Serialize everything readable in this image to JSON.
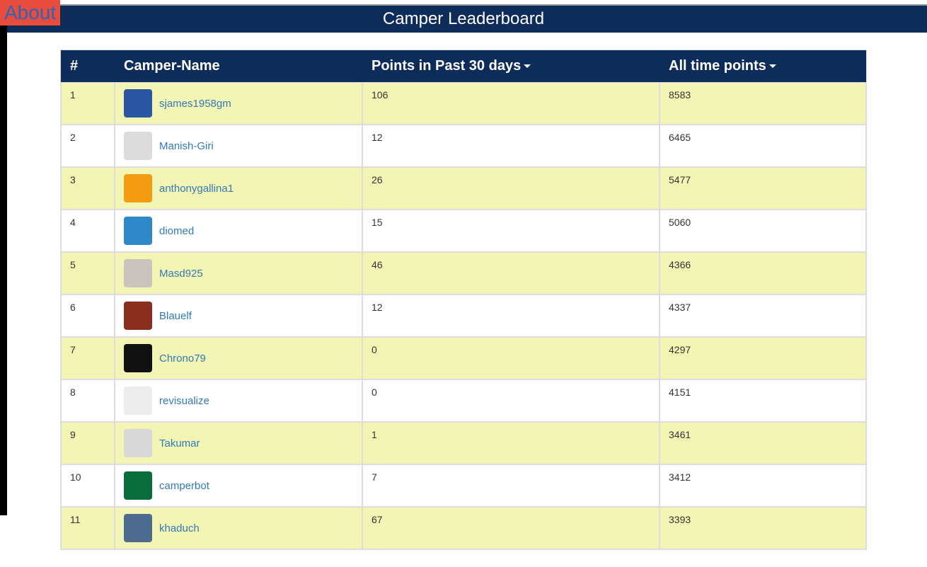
{
  "about": {
    "label": "About"
  },
  "header": {
    "title": "Camper Leaderboard"
  },
  "table": {
    "columns": {
      "rank": "#",
      "name": "Camper-Name",
      "recent": "Points in Past 30 days",
      "alltime": "All time points"
    },
    "rows": [
      {
        "rank": "1",
        "username": "sjames1958gm",
        "recent": "106",
        "alltime": "8583",
        "avatar_bg": "#2b56a3"
      },
      {
        "rank": "2",
        "username": "Manish-Giri",
        "recent": "12",
        "alltime": "6465",
        "avatar_bg": "#dcdcdc"
      },
      {
        "rank": "3",
        "username": "anthonygallina1",
        "recent": "26",
        "alltime": "5477",
        "avatar_bg": "#f39c12"
      },
      {
        "rank": "4",
        "username": "diomed",
        "recent": "15",
        "alltime": "5060",
        "avatar_bg": "#2f88c8"
      },
      {
        "rank": "5",
        "username": "Masd925",
        "recent": "46",
        "alltime": "4366",
        "avatar_bg": "#c9c4bd"
      },
      {
        "rank": "6",
        "username": "Blauelf",
        "recent": "12",
        "alltime": "4337",
        "avatar_bg": "#8b2d1f"
      },
      {
        "rank": "7",
        "username": "Chrono79",
        "recent": "0",
        "alltime": "4297",
        "avatar_bg": "#111111"
      },
      {
        "rank": "8",
        "username": "revisualize",
        "recent": "0",
        "alltime": "4151",
        "avatar_bg": "#ececec"
      },
      {
        "rank": "9",
        "username": "Takumar",
        "recent": "1",
        "alltime": "3461",
        "avatar_bg": "#d8d8d8"
      },
      {
        "rank": "10",
        "username": "camperbot",
        "recent": "7",
        "alltime": "3412",
        "avatar_bg": "#0a6b3b"
      },
      {
        "rank": "11",
        "username": "khaduch",
        "recent": "67",
        "alltime": "3393",
        "avatar_bg": "#4d6b8e"
      }
    ]
  },
  "colors": {
    "header_bg": "#0d2c5a",
    "row_stripe": "#f3f5b4",
    "link": "#337ab7",
    "about_bg": "#e84c3d",
    "about_fg": "#2e64b5"
  }
}
